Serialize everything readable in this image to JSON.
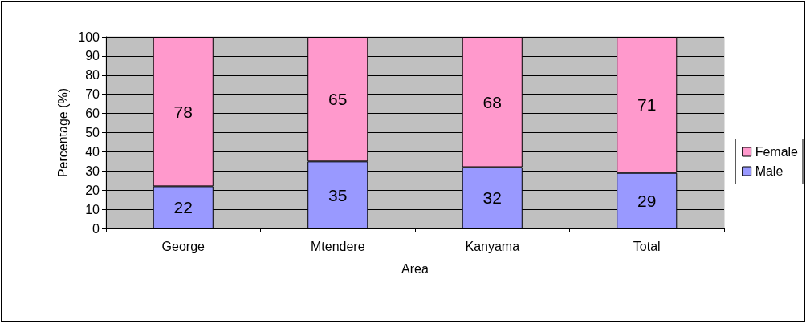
{
  "chart_data": {
    "type": "bar",
    "xlabel": "Area",
    "ylabel": "Percentage (%)",
    "categories": [
      "George",
      "Mtendere",
      "Kanyama",
      "Total"
    ],
    "series": [
      {
        "name": "Male",
        "color": "#9999ff",
        "values": [
          22,
          35,
          32,
          29
        ]
      },
      {
        "name": "Female",
        "color": "#ff99cc",
        "values": [
          78,
          65,
          68,
          71
        ]
      }
    ],
    "stacked": true,
    "data_labels": true,
    "ylim": [
      0,
      100
    ],
    "yticks": [
      0,
      10,
      20,
      30,
      40,
      50,
      60,
      70,
      80,
      90,
      100
    ],
    "grid": "y",
    "legend": "right"
  }
}
